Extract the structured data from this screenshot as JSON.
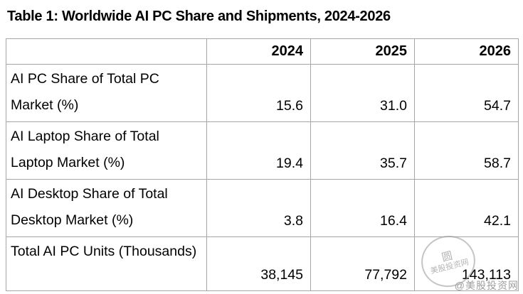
{
  "page": {
    "title": "Table 1: Worldwide AI PC Share and Shipments, 2024-2026"
  },
  "chart_data": {
    "type": "table",
    "title": "Table 1: Worldwide AI PC Share and Shipments, 2024-2026",
    "columns": [
      "2024",
      "2025",
      "2026"
    ],
    "rows": [
      {
        "label": "AI PC Share of Total PC Market (%)",
        "values": [
          "15.6",
          "31.0",
          "54.7"
        ]
      },
      {
        "label": "AI Laptop Share of Total Laptop Market (%)",
        "values": [
          "19.4",
          "35.7",
          "58.7"
        ]
      },
      {
        "label": "AI Desktop Share of Total Desktop Market (%)",
        "values": [
          "3.8",
          "16.4",
          "42.1"
        ]
      },
      {
        "label": "Total AI PC Units (Thousands)",
        "values": [
          "38,145",
          "77,792",
          "143,113"
        ]
      }
    ],
    "layout": {
      "grid": true,
      "value_alignment": "right",
      "header_style": "bold"
    }
  },
  "watermark": {
    "text": "@美股投资网",
    "seal_text": "美股投资网",
    "seal_glyph": "圆"
  },
  "colors": {
    "border": "#a6a6a6",
    "text": "#000000",
    "watermark": "#9e9e9e",
    "background": "#ffffff"
  }
}
